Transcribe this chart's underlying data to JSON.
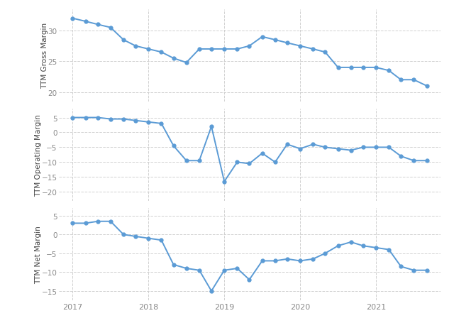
{
  "gross_margin": {
    "x": [
      2017.0,
      2017.17,
      2017.33,
      2017.5,
      2017.67,
      2017.83,
      2018.0,
      2018.17,
      2018.33,
      2018.5,
      2018.67,
      2018.83,
      2019.0,
      2019.17,
      2019.33,
      2019.5,
      2019.67,
      2019.83,
      2020.0,
      2020.17,
      2020.33,
      2020.5,
      2020.67,
      2020.83,
      2021.0,
      2021.17,
      2021.33,
      2021.5,
      2021.67
    ],
    "y": [
      32.0,
      31.5,
      31.0,
      30.5,
      28.5,
      27.5,
      27.0,
      26.5,
      25.5,
      24.8,
      27.0,
      27.0,
      27.0,
      27.0,
      27.5,
      29.0,
      28.5,
      28.0,
      27.5,
      27.0,
      26.5,
      24.0,
      24.0,
      24.0,
      24.0,
      23.5,
      22.0,
      22.0,
      21.0
    ],
    "ylabel": "TTM Gross Margin",
    "yticks": [
      20,
      25,
      30
    ],
    "ylim": [
      18.5,
      33.5
    ]
  },
  "operating_margin": {
    "x": [
      2017.0,
      2017.17,
      2017.33,
      2017.5,
      2017.67,
      2017.83,
      2018.0,
      2018.17,
      2018.33,
      2018.5,
      2018.67,
      2018.83,
      2019.0,
      2019.17,
      2019.33,
      2019.5,
      2019.67,
      2019.83,
      2020.0,
      2020.17,
      2020.33,
      2020.5,
      2020.67,
      2020.83,
      2021.0,
      2021.17,
      2021.33,
      2021.5,
      2021.67
    ],
    "y": [
      5.0,
      5.0,
      5.0,
      4.5,
      4.5,
      4.0,
      3.5,
      3.0,
      -4.5,
      -9.5,
      -9.5,
      2.0,
      -16.5,
      -10.0,
      -10.5,
      -7.0,
      -10.0,
      -4.0,
      -5.5,
      -4.0,
      -5.0,
      -5.5,
      -6.0,
      -5.0,
      -5.0,
      -5.0,
      -8.0,
      -9.5,
      -9.5
    ],
    "ylabel": "TTM Operating Margin",
    "yticks": [
      -20,
      -15,
      -10,
      -5,
      0,
      5
    ],
    "ylim": [
      -23,
      8
    ]
  },
  "net_margin": {
    "x": [
      2017.0,
      2017.17,
      2017.33,
      2017.5,
      2017.67,
      2017.83,
      2018.0,
      2018.17,
      2018.33,
      2018.5,
      2018.67,
      2018.83,
      2019.0,
      2019.17,
      2019.33,
      2019.5,
      2019.67,
      2019.83,
      2020.0,
      2020.17,
      2020.33,
      2020.5,
      2020.67,
      2020.83,
      2021.0,
      2021.17,
      2021.33,
      2021.5,
      2021.67
    ],
    "y": [
      3.0,
      3.0,
      3.5,
      3.5,
      0.0,
      -0.5,
      -1.0,
      -1.5,
      -8.0,
      -9.0,
      -9.5,
      -15.0,
      -9.5,
      -9.0,
      -12.0,
      -7.0,
      -7.0,
      -6.5,
      -7.0,
      -6.5,
      -5.0,
      -3.0,
      -2.0,
      -3.0,
      -3.5,
      -4.0,
      -8.5,
      -9.5,
      -9.5
    ],
    "ylabel": "TTM Net Margin",
    "yticks": [
      -15,
      -10,
      -5,
      0,
      5
    ],
    "ylim": [
      -17.5,
      7
    ]
  },
  "line_color": "#5b9bd5",
  "marker": "o",
  "marker_size": 3.5,
  "line_width": 1.4,
  "bg_color": "#ffffff",
  "grid_color": "#cccccc",
  "xticks": [
    2017,
    2018,
    2019,
    2020,
    2021
  ],
  "xlim": [
    2016.82,
    2021.85
  ],
  "tick_label_color": "#888888",
  "ylabel_color": "#444444",
  "ylabel_fontsize": 7.5
}
